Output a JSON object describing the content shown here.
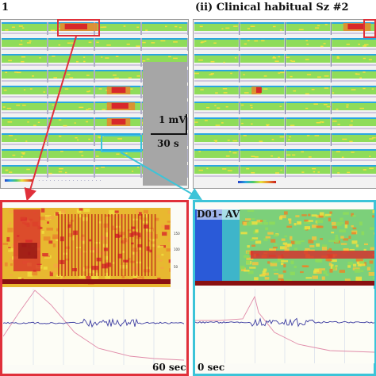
{
  "panel_i": {
    "label": "1"
  },
  "panel_ii": {
    "label": "(ii) Clinical habitual Sz #2"
  },
  "scale_bar": {
    "voltage": "1 mV",
    "time": "30 s"
  },
  "zoom_left": {
    "time_label": "60 sec",
    "y_ticks": [
      "150",
      "100",
      "50"
    ]
  },
  "zoom_right": {
    "channel_label": "D01- AV",
    "time_label": "0 sec"
  },
  "colors": {
    "left_highlight": "#e0303a",
    "right_highlight": "#3cc4d8",
    "spectrogram_green": "#8fdc5a",
    "spectrogram_yellow": "#f0e040",
    "spectrogram_red": "#d8282a",
    "spectrogram_blue": "#2a5ad8",
    "trace_blue": "#3a3aa0",
    "trace_pink": "#e08aa8"
  }
}
